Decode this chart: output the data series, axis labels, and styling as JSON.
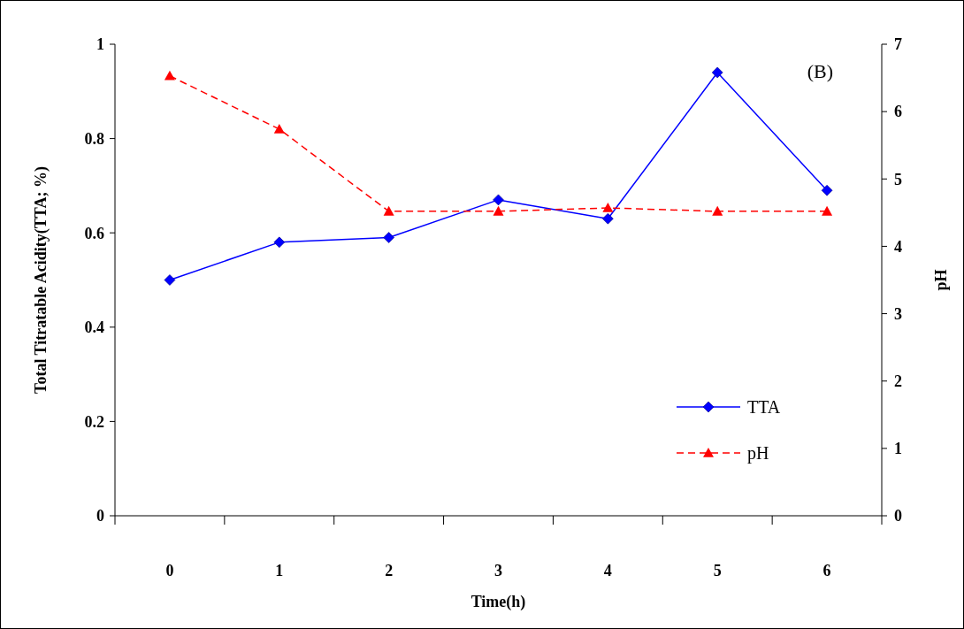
{
  "chart_data": {
    "type": "line",
    "categories": [
      "0",
      "1",
      "2",
      "3",
      "4",
      "5",
      "6"
    ],
    "xlabel": "Time(h)",
    "ylabel": "Total Titratable Acidity(TTA; %)",
    "y2label": "pH",
    "ylim": [
      0,
      1
    ],
    "yticks": [
      0,
      0.2,
      0.4,
      0.6,
      0.8,
      1
    ],
    "y2lim": [
      0,
      7
    ],
    "y2ticks": [
      0,
      1,
      2,
      3,
      4,
      5,
      6,
      7
    ],
    "legend": "bottom right",
    "annotations": [
      "(B)"
    ],
    "series": [
      {
        "name": "TTA",
        "color": "#0000ff",
        "marker": "diamond",
        "line_style": "solid",
        "values": [
          0.5,
          0.58,
          0.59,
          0.67,
          0.63,
          0.94,
          0.69
        ]
      },
      {
        "name": "pH",
        "color": "#ff0000",
        "marker": "triangle",
        "line_style": "dashed",
        "axis": "y2",
        "values": [
          6.53,
          5.74,
          4.52,
          4.52,
          4.57,
          4.52,
          4.52
        ]
      }
    ]
  }
}
